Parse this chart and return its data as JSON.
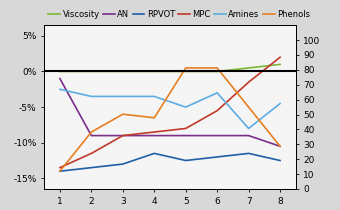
{
  "x": [
    1,
    2,
    3,
    4,
    5,
    6,
    7,
    8
  ],
  "Viscosity": [
    0.0,
    0.0,
    0.0,
    0.0,
    0.0,
    0.0,
    0.5,
    1.0
  ],
  "AN": [
    -1.0,
    -9.0,
    -9.0,
    -9.0,
    -9.0,
    -9.0,
    -9.0,
    -10.5
  ],
  "RPVOT": [
    -14.0,
    -13.5,
    -13.0,
    -11.5,
    -12.5,
    -12.0,
    -11.5,
    -12.5
  ],
  "MPC": [
    -13.5,
    -11.5,
    -9.0,
    -8.5,
    -8.0,
    -5.5,
    -1.5,
    2.0
  ],
  "Amines": [
    -2.5,
    -3.5,
    -3.5,
    -3.5,
    -5.0,
    -3.0,
    -8.0,
    -4.5
  ],
  "Phenols": [
    -14.0,
    -8.5,
    -6.0,
    -6.5,
    0.5,
    0.5,
    -5.0,
    -10.5
  ],
  "colors": {
    "Viscosity": "#7cb637",
    "AN": "#7b2d8b",
    "RPVOT": "#1f5fa6",
    "MPC": "#c0392b",
    "Amines": "#5dade2",
    "Phenols": "#e67e22"
  },
  "ylim_left": [
    -16.5,
    6.5
  ],
  "ylim_right": [
    0,
    110
  ],
  "left_ticks": [
    -15,
    -10,
    -5,
    0,
    5
  ],
  "left_labels": [
    "-15%",
    "-10%",
    "-5%",
    "0%",
    "5%"
  ],
  "right_ticks": [
    0,
    10,
    20,
    30,
    40,
    50,
    60,
    70,
    80,
    90,
    100
  ],
  "background": "#d8d8d8",
  "plot_bg": "#f5f5f5",
  "legend_fontsize": 6.0,
  "tick_fontsize": 6.5,
  "linewidth": 1.2
}
